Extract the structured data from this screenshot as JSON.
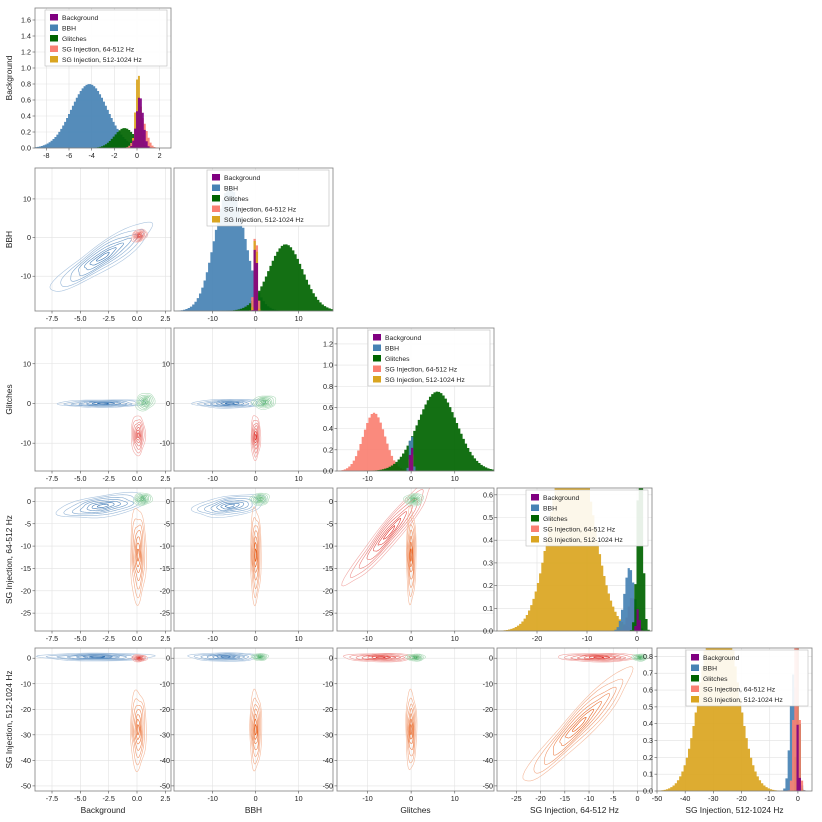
{
  "chart_data": {
    "type": "corner",
    "variables": [
      "Background",
      "BBH",
      "Glitches",
      "SG Injection, 64-512 Hz",
      "SG Injection, 512-1024 Hz"
    ],
    "legend": {
      "placement": "top-right of each diagonal panel",
      "entries": [
        "Background",
        "BBH",
        "Glitches",
        "SG Injection, 64-512 Hz",
        "SG Injection, 512-1024 Hz"
      ]
    },
    "colors": {
      "Background": "#800080",
      "BBH": "#4682b4",
      "Glitches": "#006400",
      "SG Injection, 64-512 Hz": "#fa8072",
      "SG Injection, 512-1024 Hz": "#daa520",
      "contour_bbh": "#2f6fb0",
      "contour_sg_low": "#de2d26",
      "contour_sg_high": "#e6550d",
      "contour_glitch": "#41ab5d",
      "contour_bg": "#8c6bb1"
    },
    "axes": {
      "Background": {
        "range": [
          -9,
          3
        ],
        "ticks": [
          -7.5,
          -5.0,
          -2.5,
          0.0,
          2.5
        ],
        "tick_labels": [
          "-7.5",
          "-5.0",
          "-2.5",
          "0.0",
          "2.5"
        ]
      },
      "BBH": {
        "range": [
          -19,
          18
        ],
        "ticks": [
          -10,
          0,
          10
        ],
        "tick_labels": [
          "-10",
          "0",
          "10"
        ]
      },
      "Glitches": {
        "range": [
          -17,
          19
        ],
        "ticks": [
          -10,
          0,
          10
        ],
        "tick_labels": [
          "-10",
          "0",
          "10"
        ]
      },
      "SG Injection, 64-512 Hz": {
        "range": [
          -29,
          3
        ],
        "ticks": [
          -25,
          -20,
          -15,
          -10,
          -5,
          0
        ],
        "tick_labels": [
          "-25",
          "-20",
          "-15",
          "-10",
          "-5",
          "0"
        ]
      },
      "SG Injection, 512-1024 Hz": {
        "range": [
          -52,
          4
        ],
        "ticks": [
          -50,
          -40,
          -30,
          -20,
          -10,
          0
        ],
        "tick_labels": [
          "-50",
          "-40",
          "-30",
          "-20",
          "-10",
          "0"
        ]
      }
    },
    "diagonal_x_axes": {
      "Background": {
        "range": [
          -9,
          3
        ],
        "ticks": [
          -8,
          -6,
          -4,
          -2,
          0,
          2
        ],
        "tick_labels": [
          "-8",
          "-6",
          "-4",
          "-2",
          "0",
          "2"
        ]
      },
      "BBH": {
        "range": [
          -19,
          18
        ],
        "ticks": [
          -10,
          0,
          10
        ],
        "tick_labels": [
          "-10",
          "0",
          "10"
        ]
      },
      "Glitches": {
        "range": [
          -17,
          19
        ],
        "ticks": [
          -10,
          0,
          10
        ],
        "tick_labels": [
          "-10",
          "0",
          "10"
        ]
      },
      "SG Injection, 64-512 Hz": {
        "range": [
          -28,
          3
        ],
        "ticks": [
          -20,
          -10,
          0
        ],
        "tick_labels": [
          "-20",
          "-10",
          "0"
        ]
      },
      "SG Injection, 512-1024 Hz": {
        "range": [
          -50,
          5
        ],
        "ticks": [
          -50,
          -40,
          -30,
          -20,
          -10,
          0
        ],
        "tick_labels": [
          "-50",
          "-40",
          "-30",
          "-20",
          "-10",
          "0"
        ]
      }
    },
    "diagonal_y": [
      {
        "variable": "Background",
        "ylim": [
          0,
          1.75
        ],
        "ticks": [
          0.0,
          0.2,
          0.4,
          0.6,
          0.8,
          1.0,
          1.2,
          1.4,
          1.6
        ],
        "tick_labels": [
          "0.0",
          "0.2",
          "0.4",
          "0.6",
          "0.8",
          "1.0",
          "1.2",
          "1.4",
          "1.6"
        ]
      },
      {
        "variable": "BBH",
        "ylim": [
          0,
          0.75
        ],
        "ticks": [],
        "tick_labels": []
      },
      {
        "variable": "Glitches",
        "ylim": [
          0,
          1.35
        ],
        "ticks": [
          0.0,
          0.2,
          0.4,
          0.6,
          0.8,
          1.0,
          1.2
        ],
        "tick_labels": [
          "0.0",
          "0.2",
          "0.4",
          "0.6",
          "0.8",
          "1.0",
          "1.2"
        ]
      },
      {
        "variable": "SG Injection, 64-512 Hz",
        "ylim": [
          0,
          0.63
        ],
        "ticks": [
          0.0,
          0.1,
          0.2,
          0.3,
          0.4,
          0.5,
          0.6
        ],
        "tick_labels": [
          "0.0",
          "0.1",
          "0.2",
          "0.3",
          "0.4",
          "0.5",
          "0.6"
        ]
      },
      {
        "variable": "SG Injection, 512-1024 Hz",
        "ylim": [
          0,
          0.85
        ],
        "ticks": [
          0.0,
          0.1,
          0.2,
          0.3,
          0.4,
          0.5,
          0.6,
          0.7,
          0.8
        ],
        "tick_labels": [
          "0.0",
          "0.1",
          "0.2",
          "0.3",
          "0.4",
          "0.5",
          "0.6",
          "0.7",
          "0.8"
        ]
      }
    ],
    "histograms": [
      {
        "variable": "Background",
        "series": [
          {
            "name": "BBH",
            "mu": -4.2,
            "sd": 1.6,
            "w": 0.8
          },
          {
            "name": "Glitches",
            "mu": -1.1,
            "sd": 0.9,
            "w": 0.25
          },
          {
            "name": "SG Injection, 64-512 Hz",
            "mu": 0.35,
            "sd": 0.45,
            "w": 0.4
          },
          {
            "name": "SG Injection, 512-1024 Hz",
            "mu": 0.1,
            "sd": 0.22,
            "w": 0.95
          },
          {
            "name": "Background",
            "mu": 0.25,
            "sd": 0.3,
            "w": 0.65
          }
        ]
      },
      {
        "variable": "BBH",
        "series": [
          {
            "name": "BBH",
            "mu": -6.0,
            "sd": 3.5,
            "w": 0.65
          },
          {
            "name": "Glitches",
            "mu": 7.0,
            "sd": 4.0,
            "w": 0.35
          },
          {
            "name": "SG Injection, 64-512 Hz",
            "mu": 0.0,
            "sd": 0.4,
            "w": 0.45
          },
          {
            "name": "SG Injection, 512-1024 Hz",
            "mu": 0.0,
            "sd": 0.3,
            "w": 0.5
          },
          {
            "name": "Background",
            "mu": 0.0,
            "sd": 0.25,
            "w": 0.5
          }
        ]
      },
      {
        "variable": "Glitches",
        "series": [
          {
            "name": "SG Injection, 64-512 Hz",
            "mu": -8.5,
            "sd": 2.5,
            "w": 0.55
          },
          {
            "name": "Glitches",
            "mu": 6.0,
            "sd": 4.5,
            "w": 0.75
          },
          {
            "name": "BBH",
            "mu": 0.0,
            "sd": 0.35,
            "w": 0.4
          },
          {
            "name": "SG Injection, 512-1024 Hz",
            "mu": 0.0,
            "sd": 0.2,
            "w": 0.3
          },
          {
            "name": "Background",
            "mu": 0.0,
            "sd": 0.2,
            "w": 0.42
          }
        ]
      },
      {
        "variable": "SG Injection, 64-512 Hz",
        "series": [
          {
            "name": "SG Injection, 512-1024 Hz",
            "mu": -13.0,
            "sd": 4.0,
            "w": 0.9
          },
          {
            "name": "SG Injection, 64-512 Hz",
            "mu": -1.0,
            "sd": 0.8,
            "w": 0.15
          },
          {
            "name": "BBH",
            "mu": -1.5,
            "sd": 1.0,
            "w": 0.28
          },
          {
            "name": "Glitches",
            "mu": 0.6,
            "sd": 0.55,
            "w": 0.84
          },
          {
            "name": "Background",
            "mu": 0.2,
            "sd": 0.3,
            "w": 0.1
          }
        ]
      },
      {
        "variable": "SG Injection, 512-1024 Hz",
        "series": [
          {
            "name": "SG Injection, 512-1024 Hz",
            "mu": -28.0,
            "sd": 6.0,
            "w": 1.2
          },
          {
            "name": "BBH",
            "mu": -1.5,
            "sd": 1.2,
            "w": 0.7
          },
          {
            "name": "Glitches",
            "mu": 0.0,
            "sd": 0.5,
            "w": 1.0
          },
          {
            "name": "SG Injection, 64-512 Hz",
            "mu": -0.5,
            "sd": 0.8,
            "w": 1.25
          },
          {
            "name": "Background",
            "mu": 0.1,
            "sd": 0.3,
            "w": 0.5
          }
        ]
      }
    ],
    "contours": [
      {
        "panel": "BBH vs Background",
        "blobs": [
          {
            "name": "BBH",
            "mx": -3.0,
            "my": -5.0,
            "sx": 1.6,
            "sy": 3.2,
            "rho": 0.9
          },
          {
            "name": "SG Injection, 64-512 Hz",
            "mx": 0.2,
            "my": 0.5,
            "sx": 0.25,
            "sy": 0.6,
            "rho": 0.3
          }
        ]
      },
      {
        "panel": "Glitches vs Background",
        "blobs": [
          {
            "name": "BBH",
            "mx": -3.0,
            "my": 0.0,
            "sx": 1.4,
            "sy": 0.35,
            "rho": 0.1
          },
          {
            "name": "SG Injection, 64-512 Hz",
            "mx": 0.1,
            "my": -8.0,
            "sx": 0.22,
            "sy": 1.8,
            "rho": 0.0
          },
          {
            "name": "Glitches",
            "mx": 0.7,
            "my": 0.4,
            "sx": 0.3,
            "sy": 0.8,
            "rho": 0.2
          }
        ]
      },
      {
        "panel": "Glitches vs BBH",
        "blobs": [
          {
            "name": "BBH",
            "mx": -6.0,
            "my": 0.0,
            "sx": 3.0,
            "sy": 0.4,
            "rho": 0.1
          },
          {
            "name": "SG Injection, 64-512 Hz",
            "mx": 0.0,
            "my": -8.5,
            "sx": 0.4,
            "sy": 2.0,
            "rho": 0.0
          },
          {
            "name": "Glitches",
            "mx": 2.0,
            "my": 0.3,
            "sx": 1.0,
            "sy": 0.6,
            "rho": 0.1
          }
        ]
      },
      {
        "panel": "SG Injection, 64-512 Hz vs Background",
        "blobs": [
          {
            "name": "BBH",
            "mx": -3.0,
            "my": -1.0,
            "sx": 1.4,
            "sy": 1.0,
            "rho": 0.5
          },
          {
            "name": "SG Injection, 512-1024 Hz",
            "mx": 0.1,
            "my": -12.0,
            "sx": 0.25,
            "sy": 3.8,
            "rho": 0.0
          },
          {
            "name": "Glitches",
            "mx": 0.5,
            "my": 0.5,
            "sx": 0.3,
            "sy": 0.5,
            "rho": 0.1
          }
        ]
      },
      {
        "panel": "SG Injection, 64-512 Hz vs BBH",
        "blobs": [
          {
            "name": "BBH",
            "mx": -6.0,
            "my": -1.0,
            "sx": 3.0,
            "sy": 0.9,
            "rho": 0.4
          },
          {
            "name": "SG Injection, 512-1024 Hz",
            "mx": 0.0,
            "my": -12.0,
            "sx": 0.45,
            "sy": 3.8,
            "rho": 0.0
          },
          {
            "name": "Glitches",
            "mx": 1.0,
            "my": 0.5,
            "sx": 0.8,
            "sy": 0.5,
            "rho": 0.1
          }
        ]
      },
      {
        "panel": "SG Injection, 64-512 Hz vs Glitches",
        "blobs": [
          {
            "name": "SG Injection, 64-512 Hz",
            "mx": -5.0,
            "my": -7.0,
            "sx": 3.6,
            "sy": 4.2,
            "rho": 0.95
          },
          {
            "name": "SG Injection, 512-1024 Hz",
            "mx": 0.0,
            "my": -12.0,
            "sx": 0.4,
            "sy": 3.8,
            "rho": 0.0
          },
          {
            "name": "Glitches",
            "mx": 0.6,
            "my": 0.4,
            "sx": 0.8,
            "sy": 0.5,
            "rho": 0.1
          }
        ]
      },
      {
        "panel": "SG Injection, 512-1024 Hz vs Background",
        "blobs": [
          {
            "name": "BBH",
            "mx": -3.5,
            "my": 0.5,
            "sx": 1.8,
            "sy": 0.55,
            "rho": 0.0
          },
          {
            "name": "SG Injection, 512-1024 Hz",
            "mx": 0.1,
            "my": -28.0,
            "sx": 0.25,
            "sy": 5.5,
            "rho": 0.0
          },
          {
            "name": "SG Injection, 64-512 Hz",
            "mx": 0.2,
            "my": 0.0,
            "sx": 0.25,
            "sy": 0.5,
            "rho": 0.0
          }
        ]
      },
      {
        "panel": "SG Injection, 512-1024 Hz vs BBH",
        "blobs": [
          {
            "name": "BBH",
            "mx": -7.0,
            "my": 0.5,
            "sx": 3.0,
            "sy": 0.6,
            "rho": 0.0
          },
          {
            "name": "SG Injection, 512-1024 Hz",
            "mx": 0.0,
            "my": -28.0,
            "sx": 0.5,
            "sy": 5.5,
            "rho": 0.0
          },
          {
            "name": "Glitches",
            "mx": 1.0,
            "my": 0.5,
            "sx": 0.7,
            "sy": 0.5,
            "rho": 0.0
          }
        ]
      },
      {
        "panel": "SG Injection, 512-1024 Hz vs Glitches",
        "blobs": [
          {
            "name": "SG Injection, 64-512 Hz",
            "mx": -7.0,
            "my": 0.3,
            "sx": 3.0,
            "sy": 0.6,
            "rho": 0.0
          },
          {
            "name": "SG Injection, 512-1024 Hz",
            "mx": 0.0,
            "my": -28.0,
            "sx": 0.45,
            "sy": 5.5,
            "rho": 0.0
          },
          {
            "name": "Glitches",
            "mx": 1.0,
            "my": 0.3,
            "sx": 0.8,
            "sy": 0.5,
            "rho": 0.0
          }
        ]
      },
      {
        "panel": "SG Injection, 512-1024 Hz vs SG Injection, 64-512 Hz",
        "blobs": [
          {
            "name": "SG Injection, 512-1024 Hz",
            "mx": -12.0,
            "my": -26.0,
            "sx": 4.0,
            "sy": 8.0,
            "rho": 0.94
          },
          {
            "name": "SG Injection, 64-512 Hz",
            "mx": -8.0,
            "my": 0.3,
            "sx": 3.0,
            "sy": 0.6,
            "rho": 0.0
          },
          {
            "name": "Glitches",
            "mx": 0.5,
            "my": 0.3,
            "sx": 0.6,
            "sy": 0.5,
            "rho": 0.0
          }
        ]
      }
    ]
  }
}
